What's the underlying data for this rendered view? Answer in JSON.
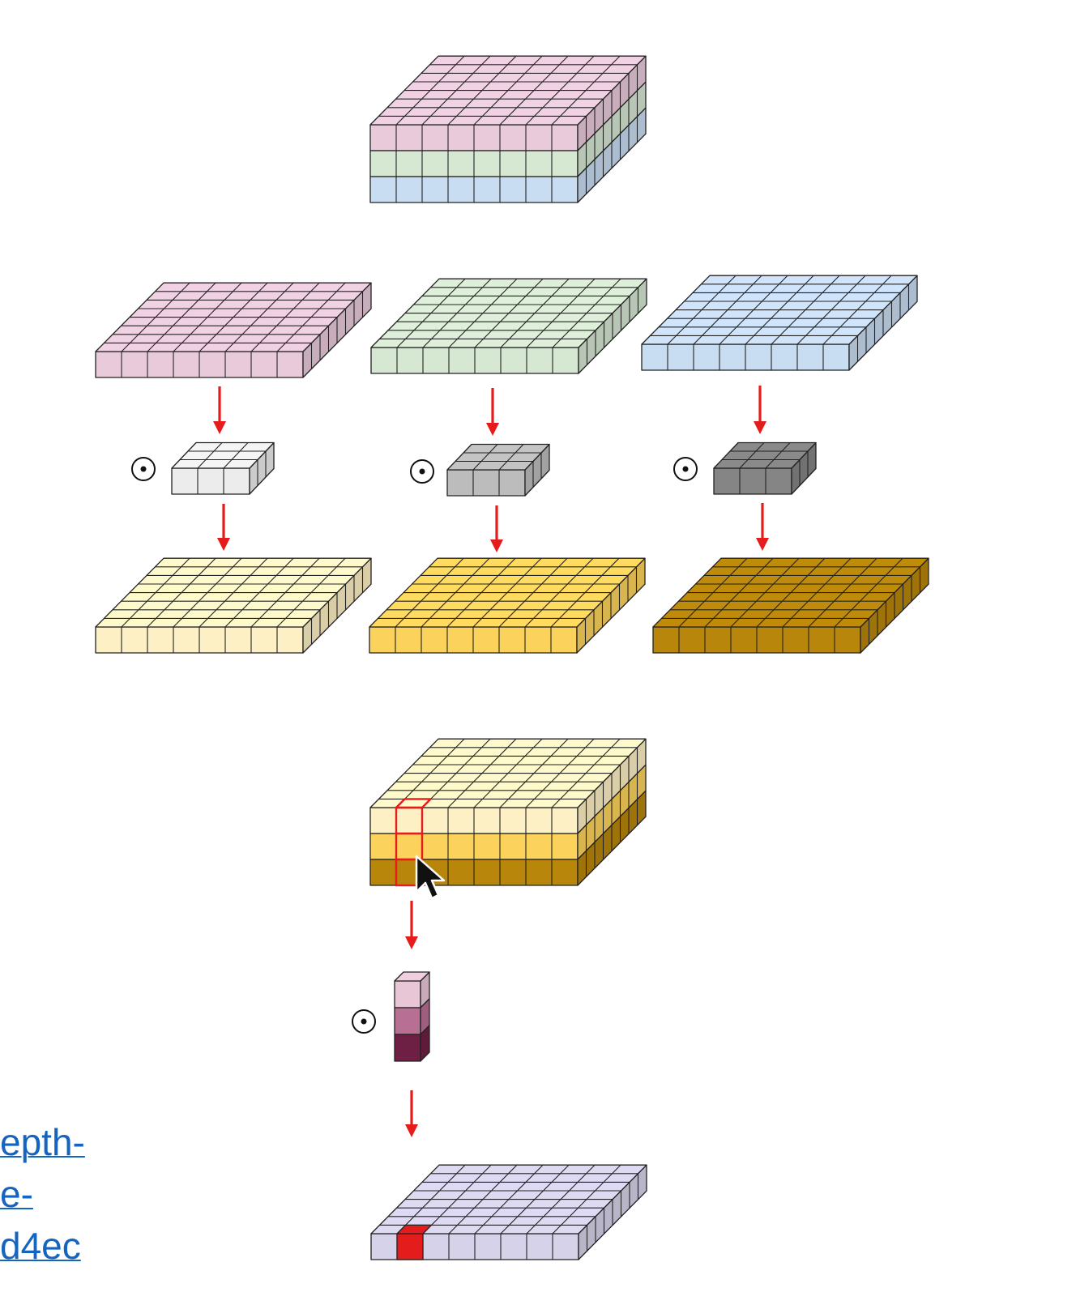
{
  "link_fragments": [
    "epth-",
    "e-",
    "d4ec"
  ],
  "operator_symbol": "⊙",
  "colors": {
    "input_channel_1": "#e8cadb",
    "input_channel_2": "#d6e7d2",
    "input_channel_3": "#c8dcf2",
    "depthwise_kernel_1": "#ececec",
    "depthwise_kernel_2": "#bcbcbc",
    "depthwise_kernel_3": "#858585",
    "depthwise_output_1": "#fdf0c4",
    "depthwise_output_2": "#fbd35c",
    "depthwise_output_3": "#b8860b",
    "pointwise_kernel_1": "#e8c6d6",
    "pointwise_kernel_2": "#b86f94",
    "pointwise_kernel_3": "#6d1f44",
    "final_output": "#d6d2ea",
    "highlight": "#e51c1c",
    "arrow": "#e51c1c",
    "link": "#1565c0",
    "edge": "#222222"
  },
  "icons": [
    "dot-product-operator-icon",
    "mouse-cursor-icon",
    "down-arrow-icon"
  ]
}
